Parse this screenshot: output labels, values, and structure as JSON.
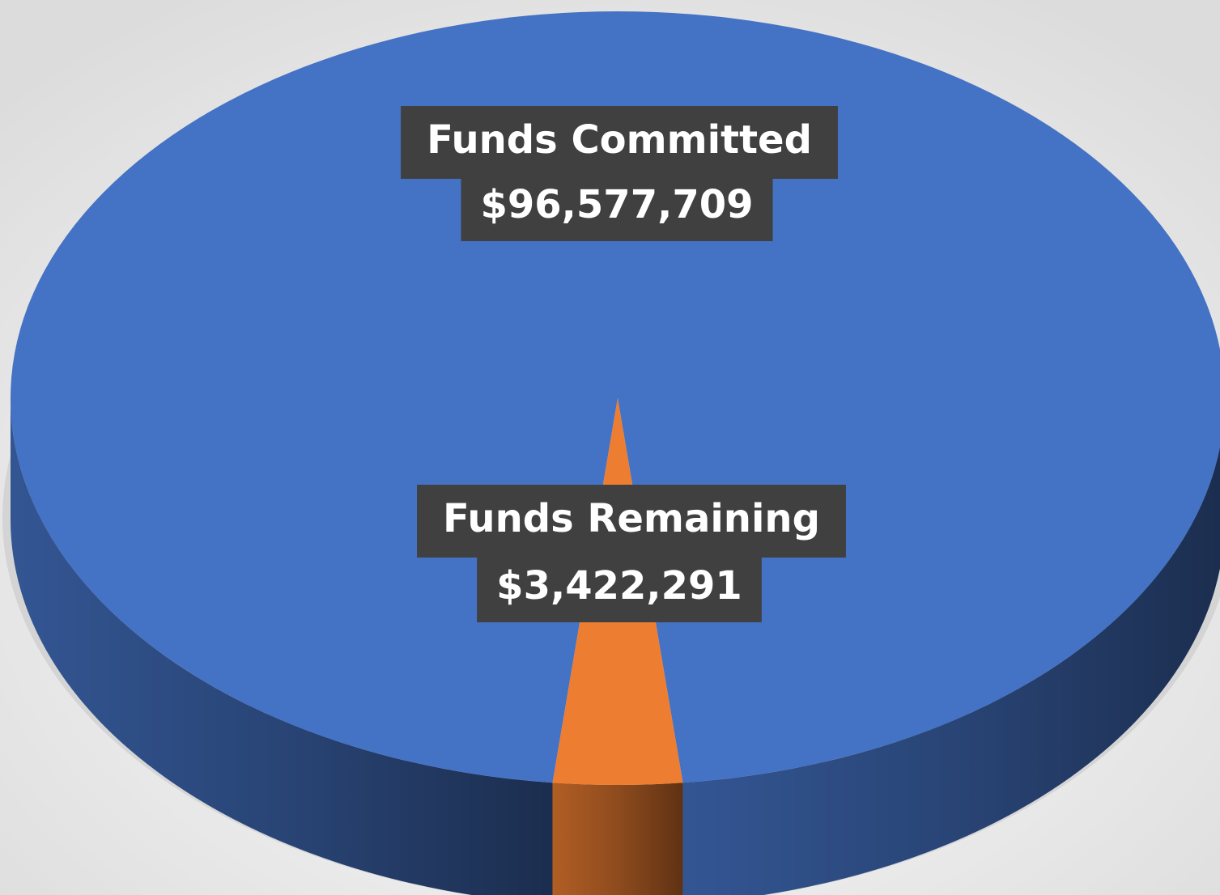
{
  "chart_data": {
    "type": "pie",
    "categories": [
      "Funds Committed",
      "Funds Remaining"
    ],
    "values": [
      96577709,
      3422291
    ],
    "value_labels": [
      "$96,577,709",
      "$3,422,291"
    ],
    "colors": [
      "#4472c4",
      "#ed7d31"
    ]
  }
}
